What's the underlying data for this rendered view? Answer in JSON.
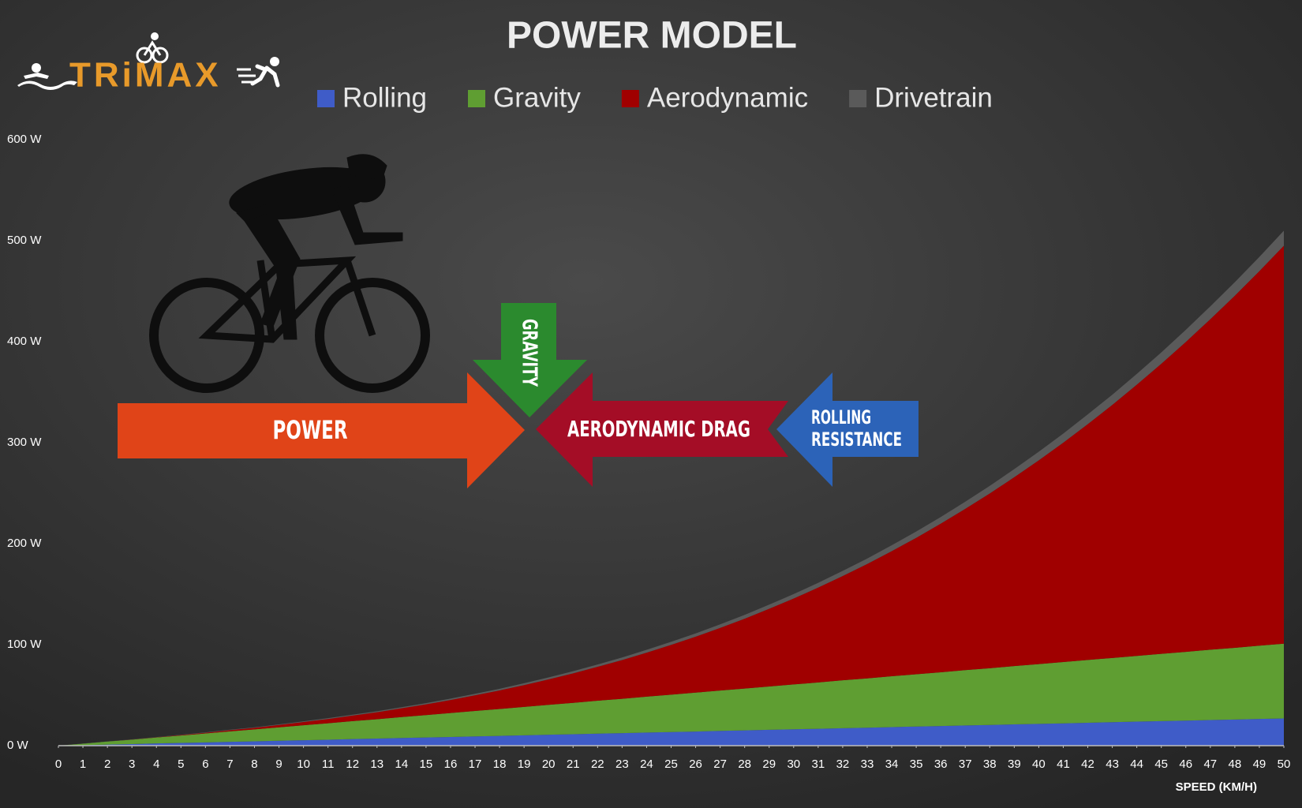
{
  "logo": "TRiMAX",
  "chart_data": {
    "type": "stacked-area",
    "title": "POWER MODEL",
    "x_label": "SPEED (KM/H)",
    "annotations": [
      "POWER",
      "GRAVITY",
      "AERODYNAMIC DRAG",
      "ROLLING",
      "RESISTANCE"
    ],
    "x": [
      0,
      1,
      2,
      3,
      4,
      5,
      6,
      7,
      8,
      9,
      10,
      11,
      12,
      13,
      14,
      15,
      16,
      17,
      18,
      19,
      20,
      21,
      22,
      23,
      24,
      25,
      26,
      27,
      28,
      29,
      30,
      31,
      32,
      33,
      34,
      35,
      36,
      37,
      38,
      39,
      40,
      41,
      42,
      43,
      44,
      45,
      46,
      47,
      48,
      49,
      50
    ],
    "xlim": [
      0,
      50
    ],
    "xticks": [
      0,
      1,
      2,
      3,
      4,
      5,
      6,
      7,
      8,
      9,
      10,
      11,
      12,
      13,
      14,
      15,
      16,
      17,
      18,
      19,
      20,
      21,
      22,
      23,
      24,
      25,
      26,
      27,
      28,
      29,
      30,
      31,
      32,
      33,
      34,
      35,
      36,
      37,
      38,
      39,
      40,
      41,
      42,
      43,
      44,
      45,
      46,
      47,
      48,
      49,
      50
    ],
    "ylim": [
      0,
      600
    ],
    "yticks": [
      {
        "value": 0,
        "label": "0 W"
      },
      {
        "value": 100,
        "label": "100 W"
      },
      {
        "value": 200,
        "label": "200 W"
      },
      {
        "value": 300,
        "label": "300 W"
      },
      {
        "value": 400,
        "label": "400 W"
      },
      {
        "value": 500,
        "label": "500 W"
      },
      {
        "value": 600,
        "label": "600 W"
      }
    ],
    "grid": false,
    "legend": "top",
    "series": [
      {
        "name": "Rolling",
        "color": "#3f5cc8",
        "values": [
          0,
          0.5,
          1.1,
          1.6,
          2.2,
          2.7,
          3.2,
          3.8,
          4.3,
          4.9,
          5.4,
          5.9,
          6.5,
          7,
          7.6,
          8.1,
          8.6,
          9.2,
          9.7,
          10.3,
          10.8,
          11.3,
          11.9,
          12.4,
          13,
          13.5,
          14,
          14.6,
          15.1,
          15.7,
          16.2,
          16.7,
          17.3,
          17.8,
          18.4,
          18.9,
          19.4,
          20,
          20.5,
          21.1,
          21.6,
          22.1,
          22.7,
          23.2,
          23.8,
          24.3,
          24.8,
          25.4,
          25.9,
          26.5,
          27
        ]
      },
      {
        "name": "Gravity",
        "color": "#5f9e32",
        "values": [
          0,
          1.5,
          3,
          4.4,
          5.9,
          7.4,
          8.9,
          10.4,
          11.8,
          13.3,
          14.8,
          16.3,
          17.8,
          19.2,
          20.7,
          22.2,
          23.7,
          25.2,
          26.6,
          28.1,
          29.6,
          31.1,
          32.6,
          34,
          35.5,
          37,
          38.5,
          40,
          41.4,
          42.9,
          44.4,
          45.9,
          47.4,
          48.8,
          50.3,
          51.8,
          53.3,
          54.8,
          56.2,
          57.7,
          59.2,
          60.7,
          62.2,
          63.6,
          65.1,
          66.6,
          68.1,
          69.6,
          71,
          72.5,
          74
        ]
      },
      {
        "name": "Aerodynamic",
        "color": "#a00000",
        "values": [
          0,
          0,
          0,
          0.1,
          0.2,
          0.4,
          0.7,
          1.1,
          1.6,
          2.3,
          3.2,
          4.2,
          5.5,
          6.9,
          8.7,
          10.6,
          12.9,
          15.5,
          18.4,
          21.6,
          25.2,
          29.2,
          33.6,
          38.4,
          43.6,
          49.3,
          55.4,
          62,
          69.2,
          76.9,
          85.1,
          93.9,
          103.3,
          113.3,
          123.9,
          135.1,
          147.1,
          159.7,
          173,
          187,
          201.7,
          217.2,
          233.5,
          250.6,
          268.5,
          287.2,
          306.8,
          327.3,
          348.6,
          370.8,
          394
        ]
      },
      {
        "name": "Drivetrain",
        "color": "#5a5a5a",
        "values": [
          0,
          0.1,
          0.1,
          0.2,
          0.2,
          0.3,
          0.4,
          0.5,
          0.5,
          0.6,
          0.7,
          0.8,
          0.9,
          1,
          1.1,
          1.2,
          1.4,
          1.5,
          1.6,
          1.8,
          2,
          2.1,
          2.3,
          2.5,
          2.8,
          3,
          3.2,
          3.5,
          3.8,
          4.1,
          4.4,
          4.7,
          5,
          5.4,
          5.8,
          6.2,
          6.6,
          7,
          7.5,
          8,
          8.5,
          9,
          9.6,
          10.1,
          10.7,
          11.3,
          12,
          12.7,
          13.4,
          14.1,
          14.9
        ]
      }
    ]
  }
}
